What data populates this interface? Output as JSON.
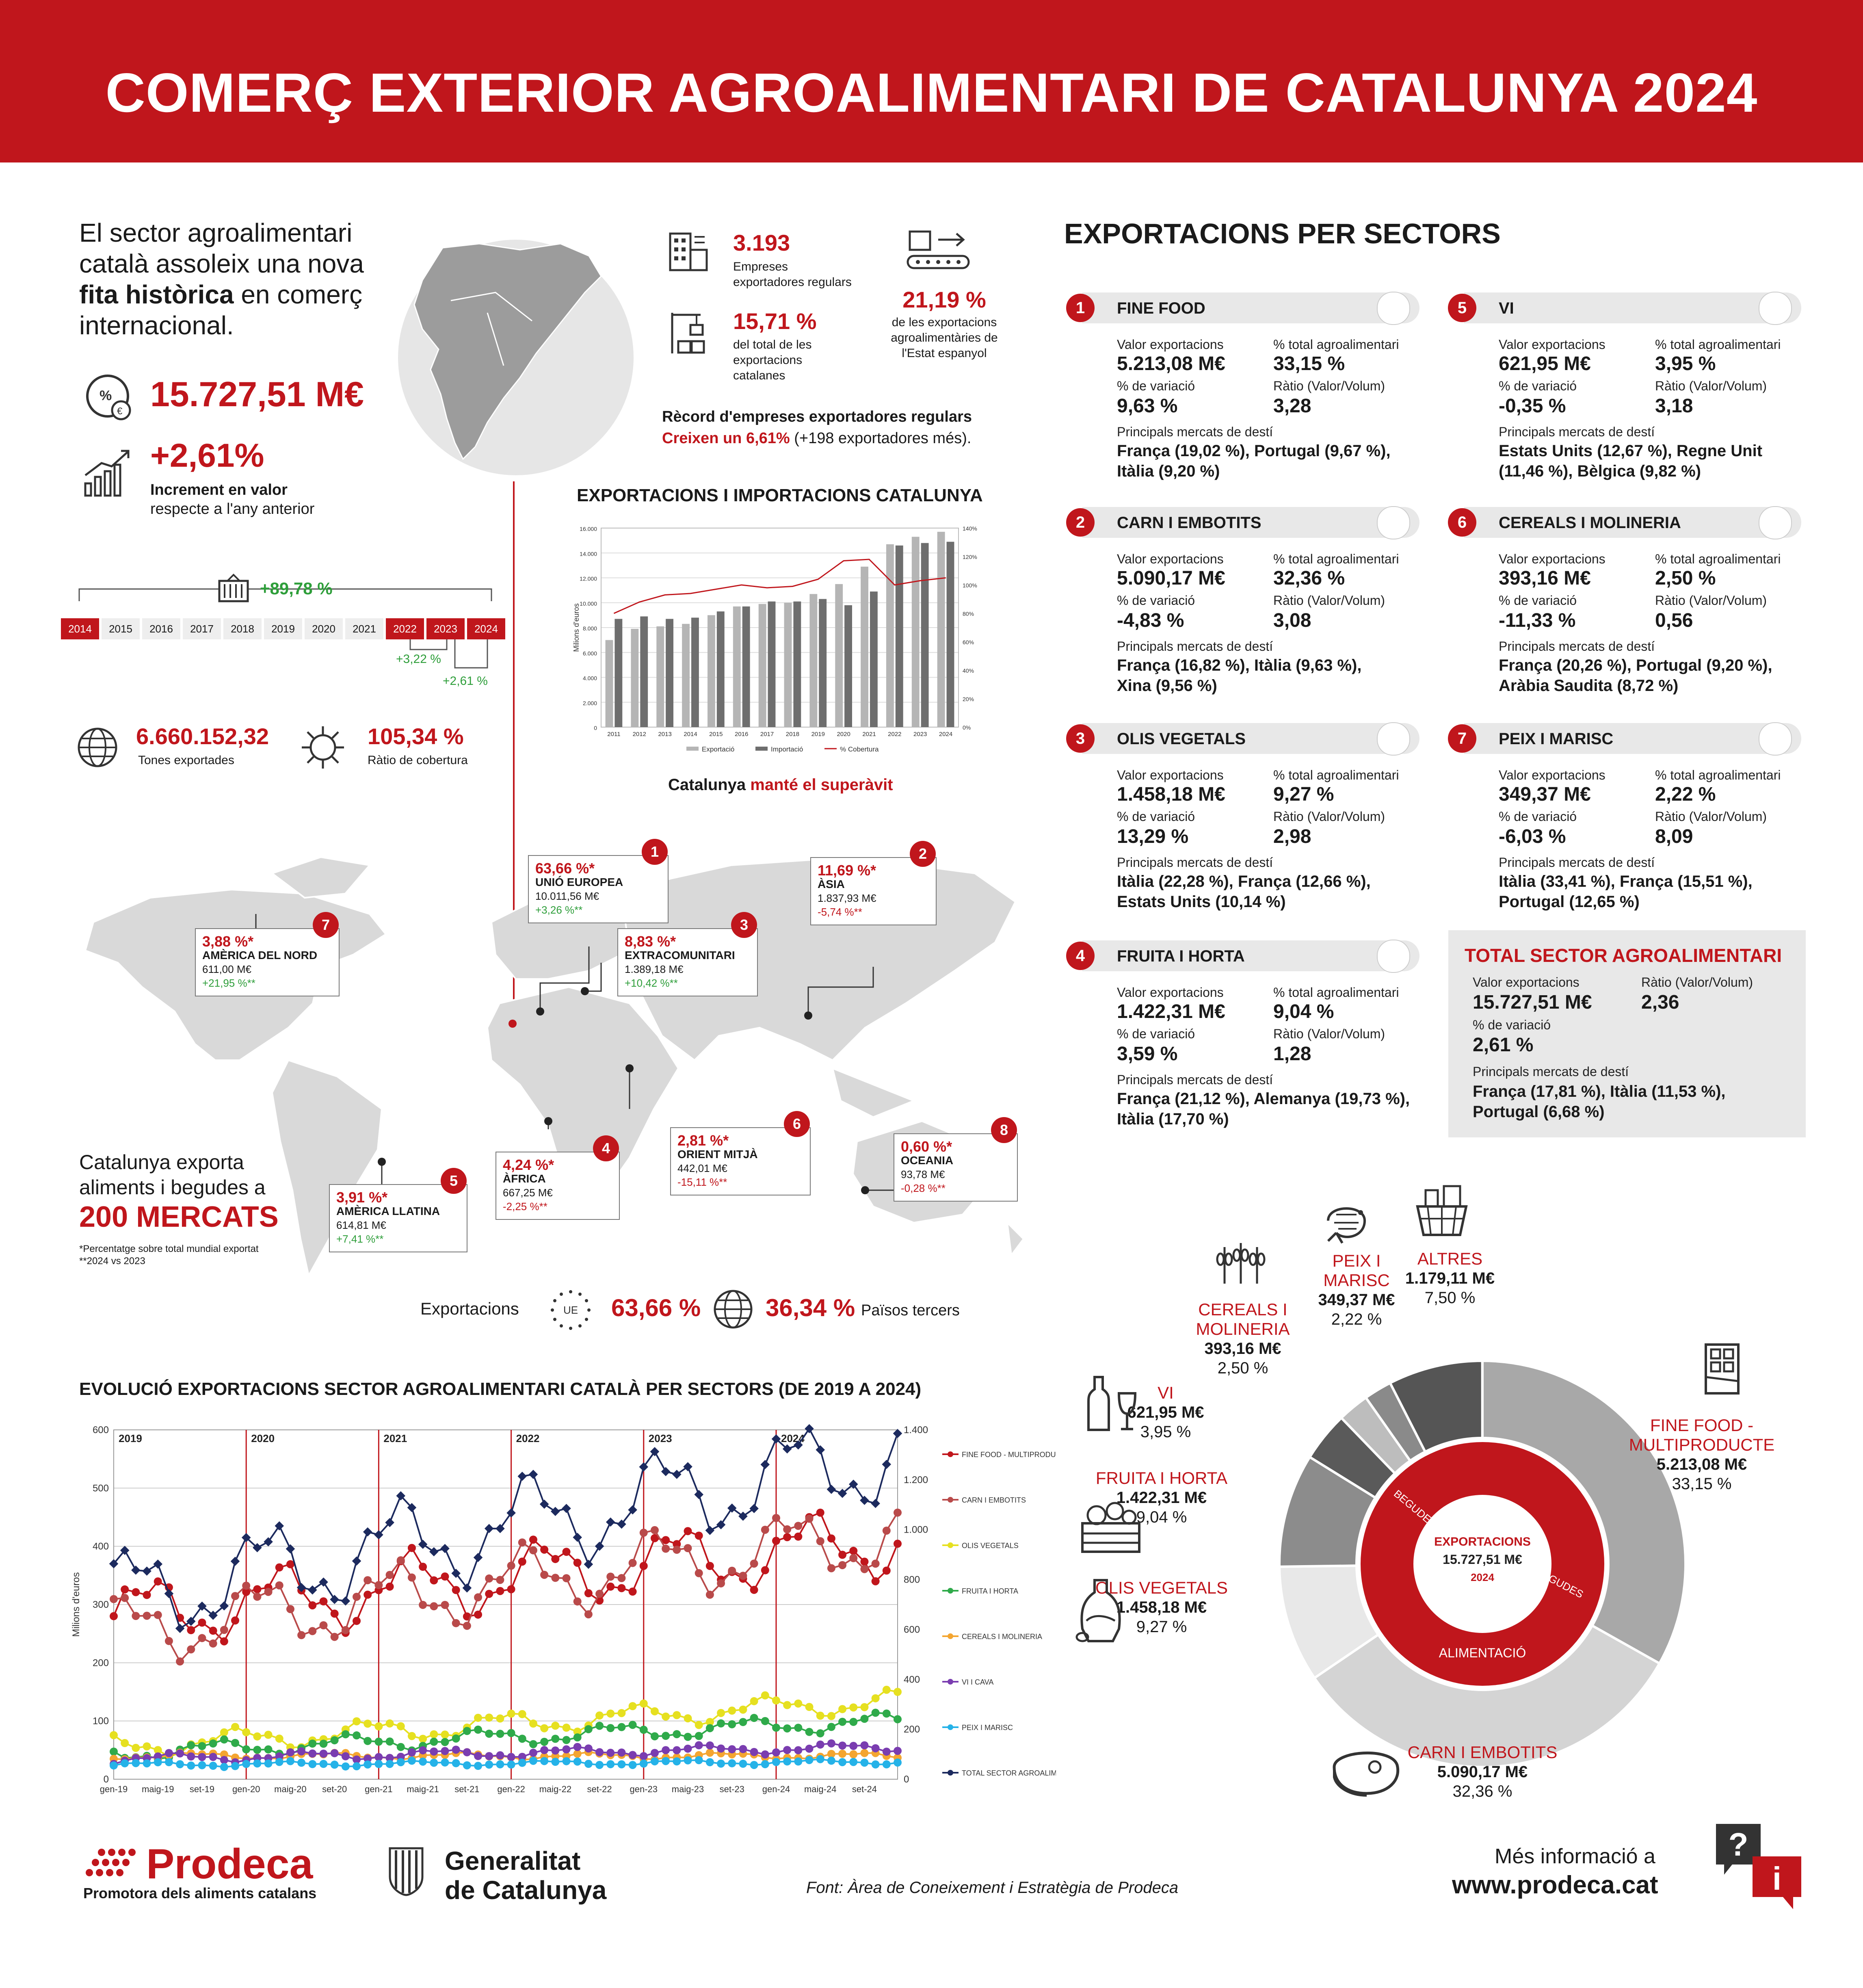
{
  "title": "COMERÇ EXTERIOR AGROALIMENTARI DE CATALUNYA 2024",
  "intro": {
    "line1": "El sector agroalimentari",
    "line2": "català assoleix una nova",
    "line3_bold": "fita històrica",
    "line3_rest": " en comerç",
    "line4": "internacional."
  },
  "kpi": {
    "total_value": "15.727,51 M€",
    "growth": "+2,61%",
    "growth_desc1": "Increment en valor",
    "growth_desc2": "respecte a l'any anterior",
    "timeline_growth": "+89,78 %",
    "years": [
      "2014",
      "2015",
      "2016",
      "2017",
      "2018",
      "2019",
      "2020",
      "2021",
      "2022",
      "2023",
      "2024"
    ],
    "growth_2023": "+3,22 %",
    "growth_2024": "+2,61 %",
    "tones": "6.660.152,32",
    "tones_label": "Tones exportades",
    "cover_ratio": "105,34 %",
    "cover_label": "Ràtio de cobertura",
    "companies": "3.193",
    "companies_label1": "Empreses",
    "companies_label2": "exportadores regulars",
    "share_cat": "15,71 %",
    "share_cat_l1": "del total de les",
    "share_cat_l2": "exportacions",
    "share_cat_l3": "catalanes",
    "share_es": "21,19 %",
    "share_es_l1": "de les exportacions",
    "share_es_l2": "agroalimentàries de",
    "share_es_l3": "l'Estat espanyol",
    "record1": "Rècord d'empreses exportadores regulars",
    "record2_red": "Creixen un 6,61%",
    "record2_rest": " (+198 exportadores més)."
  },
  "trade_chart_title": "EXPORTACIONS I IMPORTACIONS CATALUNYA",
  "trade_chart_caption_a": "Catalunya ",
  "trade_chart_caption_b": "manté el superàvit",
  "map": {
    "footer_label": "Exportacions",
    "eu_pct": "63,66 %",
    "third_pct": "36,34 %",
    "third_label": "Països tercers",
    "eu_badge": "UE",
    "exports_to1": "Catalunya exporta",
    "exports_to2": "aliments i begudes a",
    "markets": "200 MERCATS",
    "note1": "*Percentatge sobre total mundial exportat",
    "note2": "**2024 vs 2023",
    "regions": [
      {
        "n": "1",
        "pct": "63,66 %*",
        "name": "UNIÓ EUROPEA",
        "value": "10.011,56 M€",
        "chg": "+3,26 %**",
        "up": true
      },
      {
        "n": "2",
        "pct": "11,69 %*",
        "name": "ÀSIA",
        "value": "1.837,93 M€",
        "chg": "-5,74 %**",
        "up": false
      },
      {
        "n": "3",
        "pct": "8,83 %*",
        "name": "EXTRACOMUNITARI",
        "value": "1.389,18 M€",
        "chg": "+10,42 %**",
        "up": true
      },
      {
        "n": "4",
        "pct": "4,24 %*",
        "name": "ÀFRICA",
        "value": "667,25 M€",
        "chg": "-2,25 %**",
        "up": false
      },
      {
        "n": "5",
        "pct": "3,91 %*",
        "name": "AMÈRICA LLATINA",
        "value": "614,81 M€",
        "chg": "+7,41 %**",
        "up": true
      },
      {
        "n": "6",
        "pct": "2,81 %*",
        "name": "ORIENT MITJÀ",
        "value": "442,01 M€",
        "chg": "-15,11 %**",
        "up": false
      },
      {
        "n": "7",
        "pct": "3,88 %*",
        "name": "AMÈRICA DEL NORD",
        "value": "611,00 M€",
        "chg": "+21,95 %**",
        "up": true
      },
      {
        "n": "8",
        "pct": "0,60 %*",
        "name": "OCEANIA",
        "value": "93,78 M€",
        "chg": "-0,28 %**",
        "up": false
      }
    ]
  },
  "sectors_title": "EXPORTACIONS PER SECTORS",
  "sector_labels": {
    "value": "Valor exportacions",
    "pct": "% total agroalimentari",
    "var": "% de variació",
    "ratio": "Ràtio (Valor/Volum)",
    "markets": "Principals mercats de destí"
  },
  "sectors": [
    {
      "n": "1",
      "name": "FINE FOOD",
      "value": "5.213,08 M€",
      "pct": "33,15 %",
      "var": "9,63 %",
      "ratio": "3,28",
      "m1": "França (19,02 %), Portugal (9,67 %),",
      "m2": "Itàlia (9,20 %)"
    },
    {
      "n": "5",
      "name": "VI",
      "value": "621,95 M€",
      "pct": "3,95 %",
      "var": "-0,35 %",
      "ratio": "3,18",
      "m1": "Estats Units (12,67 %), Regne Unit",
      "m2": "(11,46 %), Bèlgica (9,82 %)"
    },
    {
      "n": "2",
      "name": "CARN I EMBOTITS",
      "value": "5.090,17 M€",
      "pct": "32,36 %",
      "var": "-4,83 %",
      "ratio": "3,08",
      "m1": "França (16,82 %), Itàlia (9,63 %),",
      "m2": "Xina (9,56 %)"
    },
    {
      "n": "6",
      "name": "CEREALS I MOLINERIA",
      "value": "393,16 M€",
      "pct": "2,50 %",
      "var": "-11,33 %",
      "ratio": "0,56",
      "m1": "França (20,26 %), Portugal (9,20 %),",
      "m2": "Aràbia Saudita (8,72 %)"
    },
    {
      "n": "3",
      "name": "OLIS VEGETALS",
      "value": "1.458,18 M€",
      "pct": "9,27 %",
      "var": "13,29 %",
      "ratio": "2,98",
      "m1": "Itàlia (22,28 %), França (12,66 %),",
      "m2": "Estats Units (10,14 %)"
    },
    {
      "n": "7",
      "name": "PEIX I MARISC",
      "value": "349,37 M€",
      "pct": "2,22 %",
      "var": "-6,03 %",
      "ratio": "8,09",
      "m1": "Itàlia (33,41 %), França (15,51 %),",
      "m2": "Portugal (12,65 %)"
    },
    {
      "n": "4",
      "name": "FRUITA I HORTA",
      "value": "1.422,31 M€",
      "pct": "9,04 %",
      "var": "3,59 %",
      "ratio": "1,28",
      "m1": "França (21,12 %), Alemanya (19,73 %),",
      "m2": "Itàlia (17,70 %)"
    }
  ],
  "total_sector": {
    "title": "TOTAL SECTOR AGROALIMENTARI",
    "value": "15.727,51 M€",
    "ratio": "2,36",
    "var": "2,61 %",
    "m1": "França (17,81 %), Itàlia (11,53 %),",
    "m2": "Portugal (6,68 %)"
  },
  "donut": {
    "center1": "EXPORTACIONS",
    "center2": "15.727,51 M€",
    "center3": "2024",
    "inner_main": "ALIMENTACIÓ",
    "inner_begudes": "BEGUDES",
    "labels": [
      {
        "name": "CEREALS I",
        "name2": "MOLINERIA",
        "value": "393,16 M€",
        "pct": "2,50 %"
      },
      {
        "name": "PEIX I",
        "name2": "MARISC",
        "value": "349,37 M€",
        "pct": "2,22 %"
      },
      {
        "name": "ALTRES",
        "value": "1.179,11 M€",
        "pct": "7,50 %"
      },
      {
        "name": "VI",
        "value": "621,95 M€",
        "pct": "3,95 %"
      },
      {
        "name": "FRUITA I HORTA",
        "value": "1.422,31 M€",
        "pct": "9,04 %"
      },
      {
        "name": "OLIS VEGETALS",
        "value": "1.458,18 M€",
        "pct": "9,27 %"
      },
      {
        "name": "FINE FOOD  -",
        "name2": "MULTIPRODUCTE",
        "value": "5.213,08 M€",
        "pct": "33,15 %"
      },
      {
        "name": "CARN I EMBOTITS",
        "value": "5.090,17 M€",
        "pct": "32,36 %"
      }
    ]
  },
  "evolution_title": "EVOLUCIÓ EXPORTACIONS SECTOR AGROALIMENTARI CATALÀ PER SECTORS (DE 2019 A 2024)",
  "footer": {
    "prodeca": "Prodeca",
    "prodeca_sub": "Promotora dels aliments catalans",
    "gen1": "Generalitat",
    "gen2": "de Catalunya",
    "source": "Font: Àrea de Coneixement i Estratègia de Prodeca",
    "more": "Més informació a",
    "url": "www.prodeca.cat"
  },
  "colors": {
    "red": "#c0161c",
    "grey": "#e8e8e8"
  },
  "chart_data": [
    {
      "type": "bar",
      "title": "EXPORTACIONS I IMPORTACIONS CATALUNYA",
      "categories": [
        "2011",
        "2012",
        "2013",
        "2014",
        "2015",
        "2016",
        "2017",
        "2018",
        "2019",
        "2020",
        "2021",
        "2022",
        "2023",
        "2024"
      ],
      "ylim": [
        0,
        16000
      ],
      "y2lim": [
        0,
        140
      ],
      "ylabel": "Milions d'euros",
      "yticks": [
        "0",
        "2.000",
        "4.000",
        "6.000",
        "8.000",
        "10.000",
        "12.000",
        "14.000",
        "16.000"
      ],
      "y2ticks": [
        "0%",
        "20%",
        "40%",
        "60%",
        "80%",
        "100%",
        "120%",
        "140%"
      ],
      "series": [
        {
          "name": "Exportació",
          "values": [
            7000,
            7900,
            8100,
            8300,
            9000,
            9700,
            9900,
            10000,
            10700,
            11500,
            12900,
            14700,
            15300,
            15700
          ]
        },
        {
          "name": "Importació",
          "values": [
            8700,
            8900,
            8700,
            8800,
            9300,
            9700,
            10100,
            10100,
            10300,
            9800,
            10900,
            14600,
            14800,
            14900
          ]
        },
        {
          "name": "% Cobertura",
          "values": [
            80,
            88,
            93,
            94,
            97,
            100,
            98,
            99,
            104,
            117,
            118,
            100,
            103,
            105
          ]
        }
      ]
    },
    {
      "type": "line",
      "title": "EVOLUCIÓ EXPORTACIONS SECTOR AGROALIMENTARI CATALÀ PER SECTORS (DE 2019 A 2024)",
      "ylabel": "Milions d'euros",
      "ylim": [
        0,
        600
      ],
      "y2lim": [
        0,
        1400
      ],
      "x_tick_labels": [
        "gen-19",
        "maig-19",
        "set-19",
        "gen-20",
        "maig-20",
        "set-20",
        "gen-21",
        "maig-21",
        "set-21",
        "gen-22",
        "maig-22",
        "set-22",
        "gen-23",
        "maig-23",
        "set-23",
        "gen-24",
        "maig-24",
        "set-24"
      ],
      "years": [
        "2019",
        "2020",
        "2021",
        "2022",
        "2023",
        "2024"
      ],
      "series": [
        {
          "name": "FINE FOOD - MULTIPRODUCTE",
          "color": "#c0161c",
          "start": 280,
          "end": 410
        },
        {
          "name": "CARN I EMBOTITS",
          "color": "#b94a4a",
          "start": 250,
          "end": 420
        },
        {
          "name": "OLIS VEGETALS",
          "color": "#e6e020",
          "start": 55,
          "end": 135
        },
        {
          "name": "FRUITA I HORTA",
          "color": "#2faa4a",
          "start": 45,
          "end": 100
        },
        {
          "name": "CEREALS I MOLINERIA",
          "color": "#f4a530",
          "start": 40,
          "end": 40
        },
        {
          "name": "VI I CAVA",
          "color": "#7a3db0",
          "start": 35,
          "end": 55
        },
        {
          "name": "PEIX I MARISC",
          "color": "#25b2e8",
          "start": 25,
          "end": 30
        },
        {
          "name": "TOTAL SECTOR AGROALIMENTARI",
          "color": "#1c2a5e",
          "start": 720,
          "end": 1300
        }
      ]
    }
  ]
}
